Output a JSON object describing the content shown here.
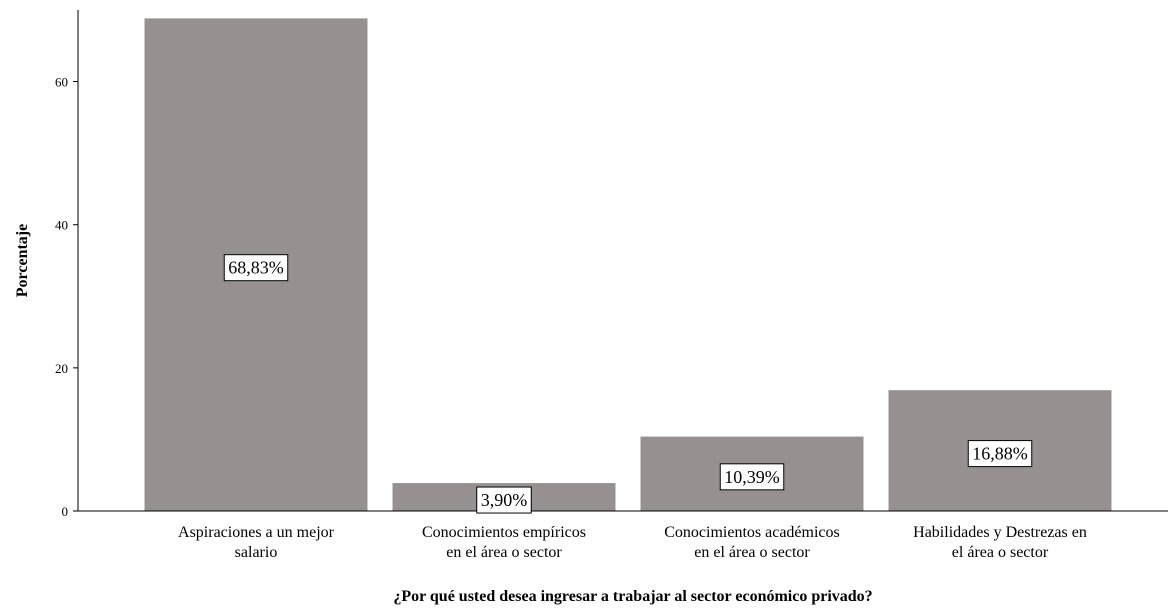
{
  "chart_data": {
    "type": "bar",
    "categories": [
      [
        "Aspiraciones a un mejor",
        "salario"
      ],
      [
        "Conocimientos empíricos",
        "en el área o sector"
      ],
      [
        "Conocimientos académicos",
        "en el área o sector"
      ],
      [
        "Habilidades y Destrezas en",
        "el área o sector"
      ]
    ],
    "values": [
      68.83,
      3.9,
      10.39,
      16.88
    ],
    "data_labels": [
      "68,83%",
      "3,90%",
      "10,39%",
      "16,88%"
    ],
    "title": "",
    "xlabel": "¿Por qué usted desea ingresar a trabajar al sector económico privado?",
    "ylabel": "Porcentaje",
    "ylim": [
      0,
      70
    ],
    "yticks": [
      0,
      20,
      40,
      60
    ],
    "grid": false,
    "legend": "none",
    "colors": {
      "bar": "#969090",
      "axis": "#000000",
      "label_box_fill": "#ffffff",
      "label_box_stroke": "#000000"
    }
  }
}
